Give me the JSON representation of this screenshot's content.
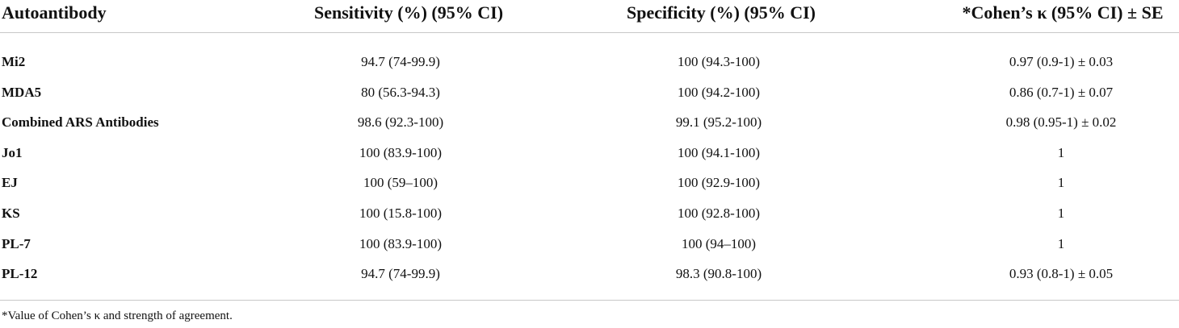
{
  "table": {
    "header": [
      "Autoantibody",
      "Sensitivity (%) (95% CI)",
      "Specificity (%) (95% CI)",
      "*Cohen’s κ (95% CI) ± SE"
    ],
    "rows": [
      [
        "Mi2",
        "94.7 (74-99.9)",
        "100 (94.3-100)",
        "0.97 (0.9-1) ± 0.03"
      ],
      [
        "MDA5",
        "80 (56.3-94.3)",
        "100 (94.2-100)",
        "0.86 (0.7-1) ± 0.07"
      ],
      [
        "Combined ARS Antibodies",
        "98.6 (92.3-100)",
        "99.1 (95.2-100)",
        "0.98 (0.95-1) ± 0.02"
      ],
      [
        "Jo1",
        "100 (83.9-100)",
        "100 (94.1-100)",
        "1"
      ],
      [
        "EJ",
        "100 (59–100)",
        "100 (92.9-100)",
        "1"
      ],
      [
        "KS",
        "100 (15.8-100)",
        "100 (92.8-100)",
        "1"
      ],
      [
        "PL-7",
        "100 (83.9-100)",
        "100 (94–100)",
        "1"
      ],
      [
        "PL-12",
        "94.7 (74-99.9)",
        "98.3 (90.8-100)",
        "0.93 (0.8-1) ± 0.05"
      ]
    ]
  },
  "footnote": "*Value of Cohen’s κ and strength of agreement."
}
